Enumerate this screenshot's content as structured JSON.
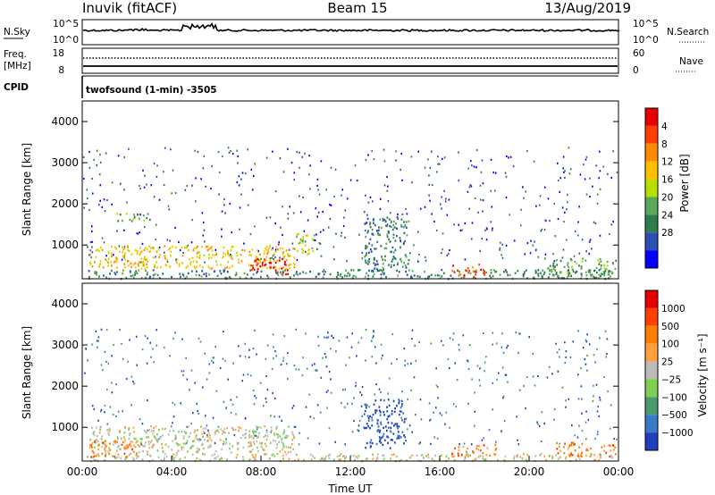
{
  "header": {
    "site": "Inuvik (fitACF)",
    "beam": "Beam 15",
    "date": "13/Aug/2019"
  },
  "params": {
    "nsky_label": "N.Sky",
    "nsky_top": "10^5",
    "nsky_bot": "10^0",
    "nsearch_label": "N.Search",
    "nsearch_top": "10^5",
    "nsearch_bot": "10^0",
    "freq_label": "Freq.",
    "freq_unit": "[MHz]",
    "freq_top": "18",
    "freq_bot": "8",
    "nave_label": "Nave",
    "nave_top": "60",
    "nave_bot": "0",
    "cpid_label": "CPID",
    "cpid_value": "twofsound (1-min) -3505"
  },
  "chart_data": [
    {
      "type": "heatmap",
      "name": "power-panel",
      "ylabel": "Slant Range [km]",
      "yticks": [
        "1000",
        "2000",
        "3000",
        "4000"
      ],
      "ylim": [
        180,
        4500
      ],
      "xlim": [
        0,
        24
      ],
      "colorbar_label": "Power [dB]",
      "colorbar_ticks": [
        "4",
        "8",
        "12",
        "16",
        "20",
        "24",
        "28"
      ],
      "colorbar_colors": [
        "#0000ff",
        "#2a4fb0",
        "#2e7d4a",
        "#5aa85a",
        "#b7e000",
        "#ffc000",
        "#ff8c00",
        "#ff4000",
        "#e80000"
      ],
      "regions": [
        {
          "t0": 0.2,
          "t1": 23.9,
          "r0": 200,
          "r1": 420,
          "level": 2
        },
        {
          "t0": 0.3,
          "t1": 9.5,
          "r0": 450,
          "r1": 1000,
          "level": 5
        },
        {
          "t0": 1.5,
          "t1": 3.0,
          "r0": 1600,
          "r1": 1800,
          "level": 3
        },
        {
          "t0": 7.5,
          "t1": 9.2,
          "r0": 300,
          "r1": 700,
          "level": 8
        },
        {
          "t0": 9.5,
          "t1": 10.4,
          "r0": 800,
          "r1": 1300,
          "level": 4
        },
        {
          "t0": 12.6,
          "t1": 14.6,
          "r0": 400,
          "r1": 1700,
          "level": 2
        },
        {
          "t0": 16.5,
          "t1": 18.0,
          "r0": 250,
          "r1": 550,
          "level": 7
        },
        {
          "t0": 20.8,
          "t1": 23.9,
          "r0": 250,
          "r1": 700,
          "level": 3
        }
      ]
    },
    {
      "type": "heatmap",
      "name": "velocity-panel",
      "ylabel": "Slant Range [km]",
      "yticks": [
        "1000",
        "2000",
        "3000",
        "4000"
      ],
      "ylim": [
        180,
        4500
      ],
      "xlim": [
        0,
        24
      ],
      "xticks": [
        "00:00",
        "04:00",
        "08:00",
        "12:00",
        "16:00",
        "20:00",
        "00:00"
      ],
      "xlabel": "Time UT",
      "colorbar_label": "Velocity [m s⁻¹]",
      "colorbar_ticks": [
        "1000",
        "500",
        "100",
        "25",
        "−25",
        "−100",
        "−500",
        "−1000"
      ],
      "colorbar_colors": [
        "#1f3fbf",
        "#3a78c8",
        "#4a9a70",
        "#7fd050",
        "#bbbbbb",
        "#ffa040",
        "#ff7f00",
        "#ff4000",
        "#e80000"
      ],
      "regions": [
        {
          "t0": 0.2,
          "t1": 23.9,
          "r0": 200,
          "r1": 380,
          "level": 4
        },
        {
          "t0": 0.3,
          "t1": 9.5,
          "r0": 400,
          "r1": 1050,
          "level": 4
        },
        {
          "t0": 0.3,
          "t1": 2.5,
          "r0": 300,
          "r1": 700,
          "level": 6
        },
        {
          "t0": 12.6,
          "t1": 14.4,
          "r0": 500,
          "r1": 1700,
          "level": 0
        },
        {
          "t0": 16.5,
          "t1": 18.5,
          "r0": 300,
          "r1": 600,
          "level": 6
        },
        {
          "t0": 21.2,
          "t1": 23.9,
          "r0": 300,
          "r1": 650,
          "level": 6
        }
      ]
    }
  ]
}
